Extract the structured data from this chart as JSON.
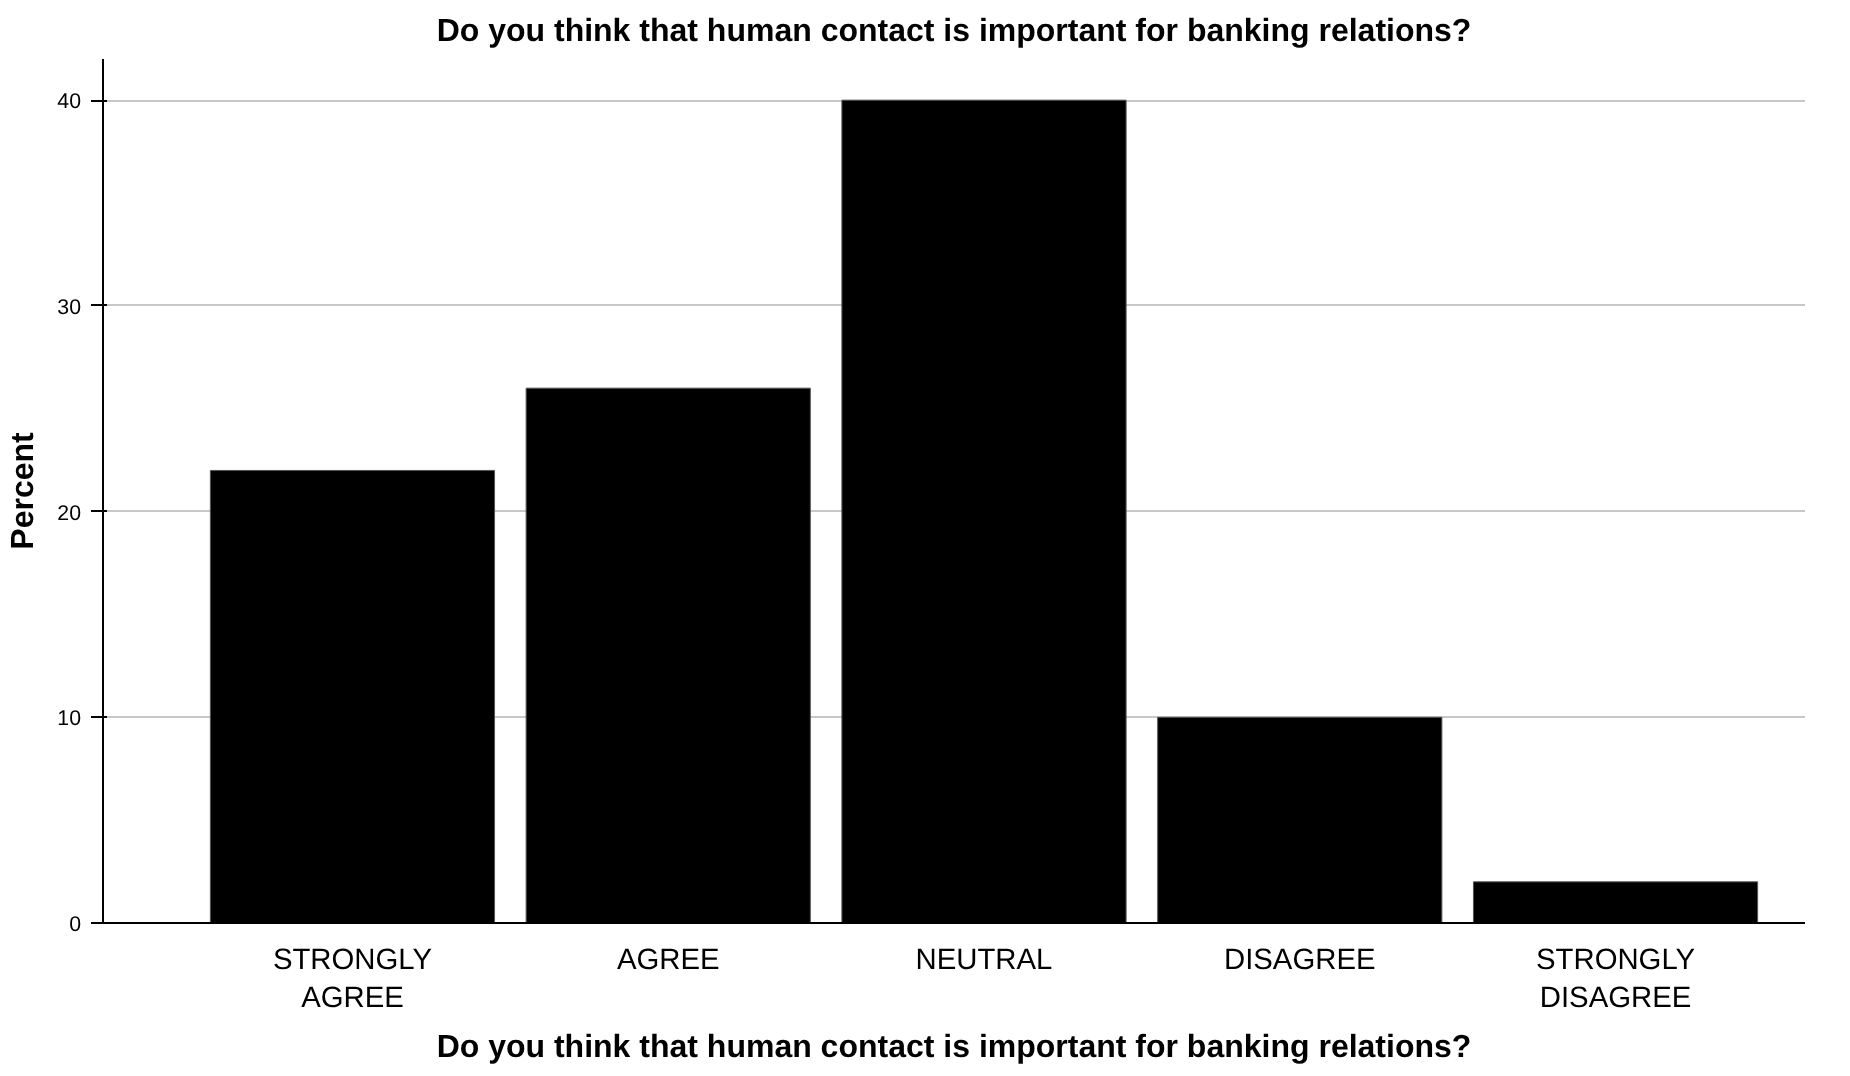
{
  "chart_data": {
    "type": "bar",
    "title": "Do you think that human contact is important for banking relations?",
    "xlabel": "Do you think that human contact is important for banking relations?",
    "ylabel": "Percent",
    "categories": [
      "STRONGLY AGREE",
      "AGREE",
      "NEUTRAL",
      "DISAGREE",
      "STRONGLY DISAGREE"
    ],
    "values": [
      22,
      26,
      40,
      10,
      2
    ],
    "color": "#000000",
    "ylim": [
      0,
      42
    ],
    "yticks": [
      0,
      10,
      20,
      30,
      40
    ],
    "grid": "y"
  }
}
